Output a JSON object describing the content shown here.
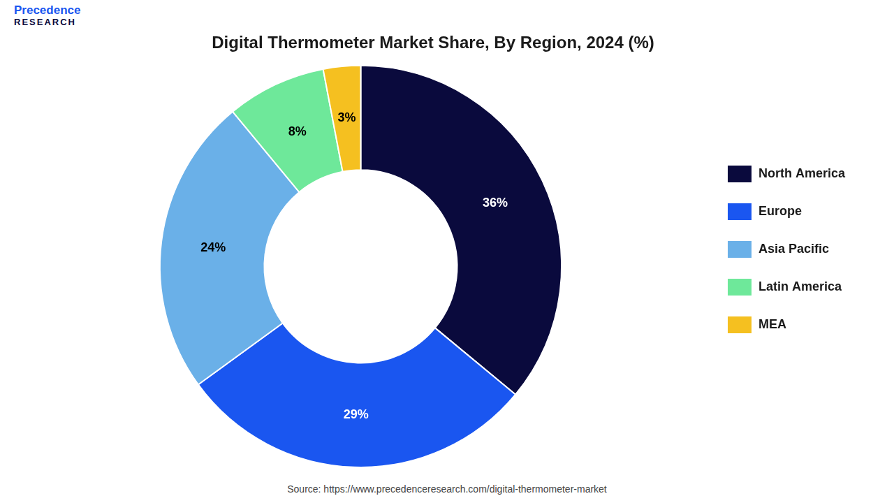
{
  "chart_data": {
    "type": "doughnut",
    "title": "Digital Thermometer Market Share, By Region, 2024 (%)",
    "categories": [
      "North America",
      "Europe",
      "Asia Pacific",
      "Latin America",
      "MEA"
    ],
    "values": [
      36,
      29,
      24,
      8,
      3
    ],
    "value_labels": [
      "36%",
      "29%",
      "24%",
      "8%",
      "3%"
    ],
    "data_labels": true,
    "colors": [
      "#0a0a3d",
      "#1a56f0",
      "#6ab0e8",
      "#6ee89a",
      "#f5c020"
    ],
    "legend": "right",
    "annotations": [
      "Precedence",
      "RESEARCH",
      "Source: https://www.precedenceresearch.com/digital-thermometer-market"
    ]
  }
}
